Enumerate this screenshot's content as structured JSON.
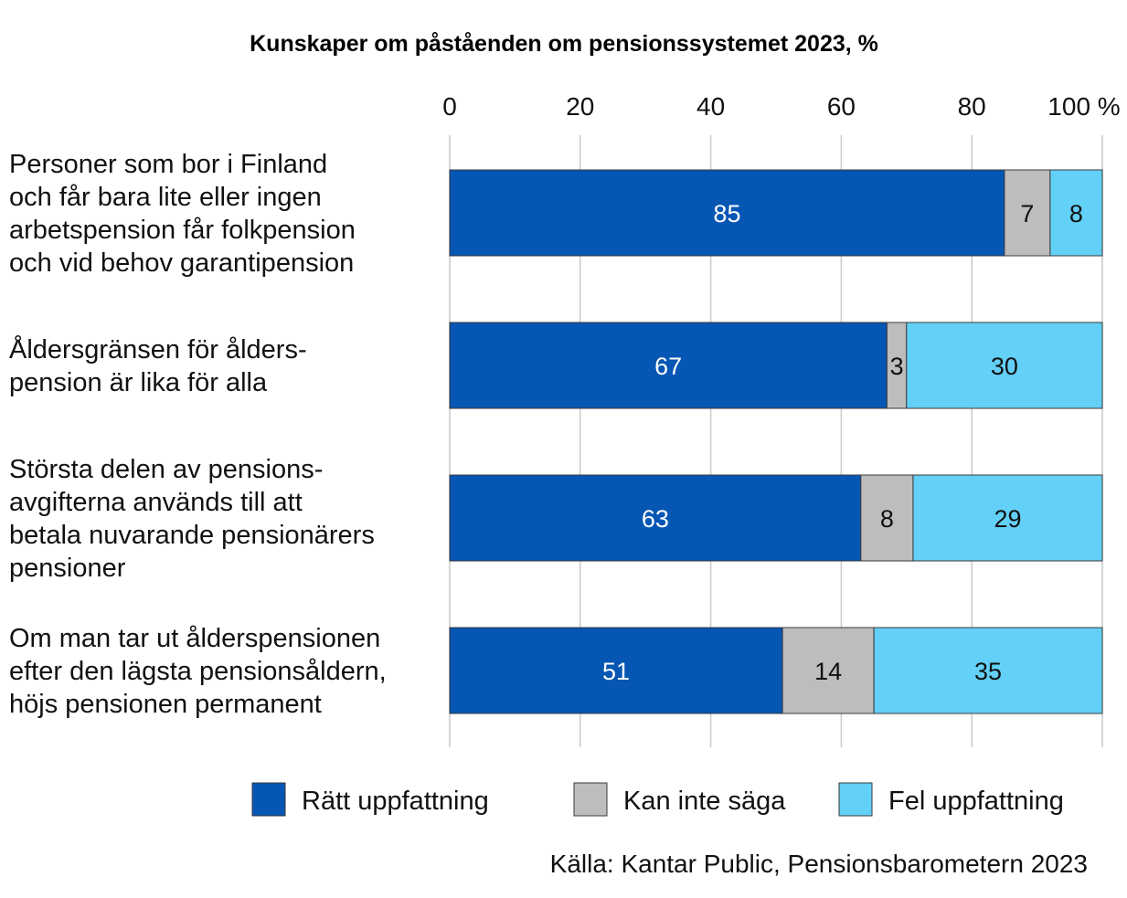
{
  "chart_data": {
    "type": "bar",
    "orientation": "horizontal",
    "stacked": true,
    "title": "Kunskaper om påståenden om pensionssystemet 2023, %",
    "xlim": [
      0,
      100
    ],
    "x_ticks": [
      "0",
      "20",
      "40",
      "60",
      "80",
      "100 %"
    ],
    "grid": true,
    "legend_position": "bottom",
    "categories": [
      [
        "Personer som bor i Finland",
        "och får bara lite eller ingen",
        "arbetspension får folkpension",
        "och vid behov garantipension"
      ],
      [
        "Åldersgränsen för ålders-",
        "pension är lika för alla"
      ],
      [
        "Största delen av pensions-",
        "avgifterna används till att",
        "betala nuvarande pensionärers",
        "pensioner"
      ],
      [
        "Om man tar ut ålderspensionen",
        "efter den lägsta pensionsåldern,",
        "höjs pensionen permanent"
      ]
    ],
    "series": [
      {
        "name": "Rätt uppfattning",
        "color": "#0656b4",
        "label_color": "#ffffff",
        "values": [
          85,
          67,
          63,
          51
        ]
      },
      {
        "name": "Kan inte säga",
        "color": "#bdbdbd",
        "label_color": "#111111",
        "values": [
          7,
          3,
          8,
          14
        ]
      },
      {
        "name": "Fel uppfattning",
        "color": "#63d0f7",
        "label_color": "#111111",
        "values": [
          8,
          30,
          29,
          35
        ]
      }
    ],
    "source": "Källa: Kantar Public, Pensionsbarometern 2023"
  }
}
